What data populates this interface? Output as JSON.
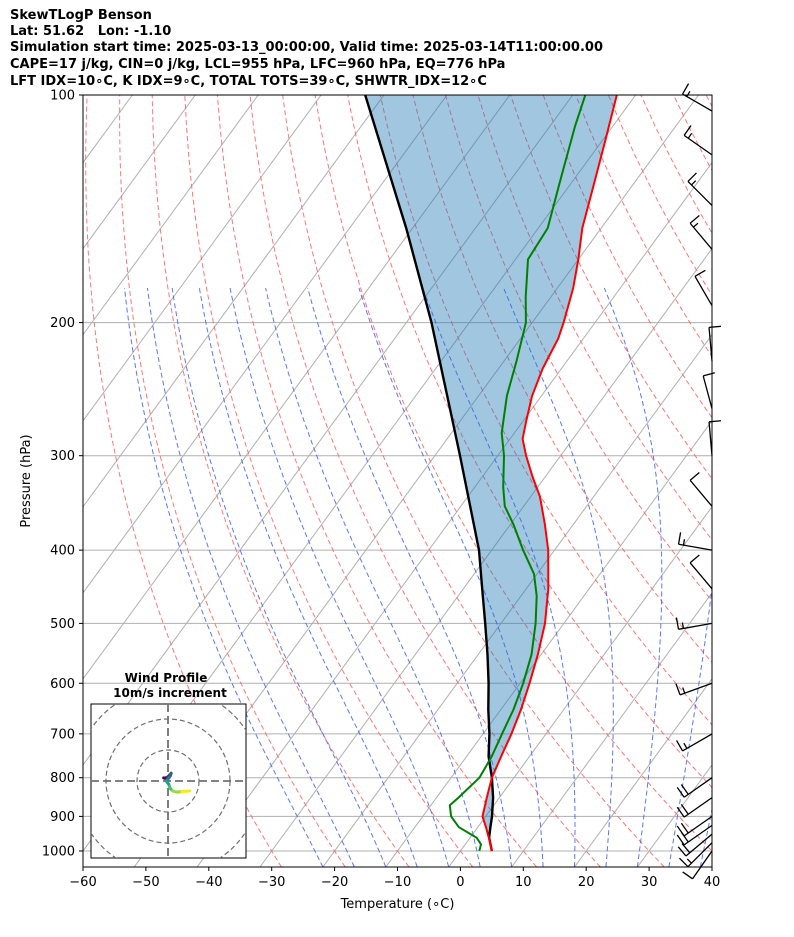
{
  "header": {
    "line1": "SkewTLogP Benson",
    "line2": "Lat: 51.62   Lon: -1.10",
    "line3": "Simulation start time: 2025-03-13_00:00:00, Valid time: 2025-03-14T11:00:00.00",
    "line4": "CAPE=17 j/kg, CIN=0 j/kg, LCL=955 hPa, LFC=960 hPa, EQ=776 hPa",
    "line5": "LFT IDX=10∘C, K IDX=9∘C, TOTAL TOTS=39∘C, SHWTR_IDX=12∘C"
  },
  "chart_data": {
    "type": "skewt",
    "xlabel": "Temperature (∘C)",
    "ylabel": "Pressure (hPa)",
    "xlim": [
      -60,
      40
    ],
    "ylim": [
      1050,
      100
    ],
    "x_ticks": [
      -60,
      -50,
      -40,
      -30,
      -20,
      -10,
      0,
      10,
      20,
      30,
      40
    ],
    "x_tick_labels": [
      "−60",
      "−50",
      "−40",
      "−30",
      "−20",
      "−10",
      "0",
      "10",
      "20",
      "30",
      "40"
    ],
    "y_ticks": [
      1000,
      900,
      800,
      700,
      600,
      500,
      400,
      300,
      200,
      100
    ],
    "y_tick_labels": [
      "1000",
      "900",
      "800",
      "700",
      "600",
      "500",
      "400",
      "300",
      "200",
      "100"
    ],
    "temperature": {
      "color": "#ff0000",
      "points": [
        [
          1000,
          5.0
        ],
        [
          970,
          3.5
        ],
        [
          930,
          1.3
        ],
        [
          900,
          -0.5
        ],
        [
          850,
          -2.0
        ],
        [
          800,
          -3.5
        ],
        [
          750,
          -4.5
        ],
        [
          700,
          -5.5
        ],
        [
          650,
          -6.8
        ],
        [
          600,
          -8.5
        ],
        [
          550,
          -10.5
        ],
        [
          500,
          -13.0
        ],
        [
          450,
          -16.5
        ],
        [
          400,
          -21.0
        ],
        [
          370,
          -24.5
        ],
        [
          340,
          -28.5
        ],
        [
          320,
          -32.0
        ],
        [
          300,
          -35.5
        ],
        [
          285,
          -38.0
        ],
        [
          270,
          -39.5
        ],
        [
          250,
          -41.5
        ],
        [
          230,
          -43.0
        ],
        [
          210,
          -44.0
        ],
        [
          200,
          -45.0
        ],
        [
          180,
          -47.5
        ],
        [
          165,
          -50.0
        ],
        [
          150,
          -53.0
        ],
        [
          130,
          -56.5
        ],
        [
          115,
          -59.5
        ],
        [
          100,
          -63.0
        ]
      ]
    },
    "dewpoint": {
      "color": "#008000",
      "points": [
        [
          1000,
          3.0
        ],
        [
          980,
          2.5
        ],
        [
          960,
          1.0
        ],
        [
          930,
          -3.0
        ],
        [
          900,
          -5.5
        ],
        [
          870,
          -7.0
        ],
        [
          850,
          -6.5
        ],
        [
          800,
          -5.5
        ],
        [
          750,
          -6.0
        ],
        [
          700,
          -7.0
        ],
        [
          650,
          -8.0
        ],
        [
          600,
          -9.5
        ],
        [
          550,
          -11.5
        ],
        [
          500,
          -14.5
        ],
        [
          460,
          -17.5
        ],
        [
          430,
          -20.5
        ],
        [
          400,
          -25.0
        ],
        [
          370,
          -29.5
        ],
        [
          350,
          -33.0
        ],
        [
          330,
          -35.5
        ],
        [
          300,
          -39.0
        ],
        [
          280,
          -42.0
        ],
        [
          250,
          -45.5
        ],
        [
          225,
          -48.0
        ],
        [
          200,
          -51.0
        ],
        [
          185,
          -54.0
        ],
        [
          165,
          -58.0
        ],
        [
          150,
          -58.5
        ],
        [
          130,
          -62.0
        ],
        [
          110,
          -66.0
        ],
        [
          100,
          -68.0
        ]
      ]
    },
    "parcel": {
      "color": "#000000",
      "points": [
        [
          1000,
          5.0
        ],
        [
          960,
          3.0
        ],
        [
          930,
          2.0
        ],
        [
          900,
          1.0
        ],
        [
          850,
          -1.0
        ],
        [
          800,
          -3.5
        ],
        [
          750,
          -6.5
        ],
        [
          700,
          -9.0
        ],
        [
          650,
          -12.0
        ],
        [
          600,
          -15.0
        ],
        [
          550,
          -18.5
        ],
        [
          500,
          -22.5
        ],
        [
          450,
          -27.0
        ],
        [
          400,
          -32.0
        ],
        [
          350,
          -38.5
        ],
        [
          300,
          -46.0
        ],
        [
          250,
          -55.0
        ],
        [
          200,
          -66.0
        ],
        [
          150,
          -81.0
        ],
        [
          100,
          -103.0
        ]
      ]
    },
    "cape_shading": {
      "color": "#1f77b4",
      "opacity": 0.42,
      "between": [
        "temperature",
        "parcel"
      ]
    },
    "isotherm_ticks": [
      -150,
      -140,
      -130,
      -120,
      -110,
      -100,
      -90,
      -80,
      -70,
      -60,
      -50,
      -40,
      -30,
      -20,
      -10,
      0,
      10,
      20,
      30,
      40
    ],
    "dry_adiabats_theta_c": [
      -30,
      -20,
      -10,
      0,
      10,
      20,
      30,
      40,
      50,
      60,
      70,
      80,
      90,
      100,
      110,
      120,
      130,
      140,
      150,
      160,
      170,
      180
    ],
    "moist_adiabats_start_c": [
      -20,
      -15,
      -10,
      -5,
      0,
      5,
      10,
      15,
      20,
      25,
      30,
      35,
      40
    ],
    "wind_barbs": [
      {
        "p": 1000,
        "speed_kt": 10,
        "dir_deg": 215
      },
      {
        "p": 975,
        "speed_kt": 15,
        "dir_deg": 225
      },
      {
        "p": 950,
        "speed_kt": 20,
        "dir_deg": 230
      },
      {
        "p": 925,
        "speed_kt": 20,
        "dir_deg": 235
      },
      {
        "p": 900,
        "speed_kt": 20,
        "dir_deg": 235
      },
      {
        "p": 850,
        "speed_kt": 20,
        "dir_deg": 235
      },
      {
        "p": 800,
        "speed_kt": 20,
        "dir_deg": 235
      },
      {
        "p": 700,
        "speed_kt": 15,
        "dir_deg": 240
      },
      {
        "p": 600,
        "speed_kt": 15,
        "dir_deg": 250
      },
      {
        "p": 500,
        "speed_kt": 15,
        "dir_deg": 260
      },
      {
        "p": 450,
        "speed_kt": 10,
        "dir_deg": 320
      },
      {
        "p": 400,
        "speed_kt": 15,
        "dir_deg": 280
      },
      {
        "p": 350,
        "speed_kt": 10,
        "dir_deg": 320
      },
      {
        "p": 300,
        "speed_kt": 10,
        "dir_deg": 355
      },
      {
        "p": 260,
        "speed_kt": 10,
        "dir_deg": 345
      },
      {
        "p": 225,
        "speed_kt": 10,
        "dir_deg": 355
      },
      {
        "p": 190,
        "speed_kt": 10,
        "dir_deg": 330
      },
      {
        "p": 160,
        "speed_kt": 15,
        "dir_deg": 320
      },
      {
        "p": 140,
        "speed_kt": 15,
        "dir_deg": 315
      },
      {
        "p": 120,
        "speed_kt": 15,
        "dir_deg": 305
      },
      {
        "p": 105,
        "speed_kt": 15,
        "dir_deg": 300
      }
    ],
    "hodograph": {
      "title": "Wind Profile",
      "subtitle": "10m/s increment",
      "ring_increment_ms": 10,
      "rings_ms": [
        10,
        20,
        30
      ],
      "range_ms": 25,
      "u_ms": [
        7.0,
        6.0,
        4.5,
        3.0,
        1.5,
        0.8,
        0.5,
        0.2,
        -0.2,
        -0.5,
        -0.2,
        0.3,
        0.8,
        1.0,
        0.6,
        -0.2,
        -1.0,
        -1.4
      ],
      "v_ms": [
        -3.2,
        -3.3,
        -3.4,
        -3.6,
        -3.2,
        -2.5,
        -1.8,
        -1.0,
        -0.5,
        0.0,
        0.5,
        1.0,
        1.8,
        2.5,
        2.0,
        1.2,
        0.9,
        1.0
      ]
    }
  }
}
